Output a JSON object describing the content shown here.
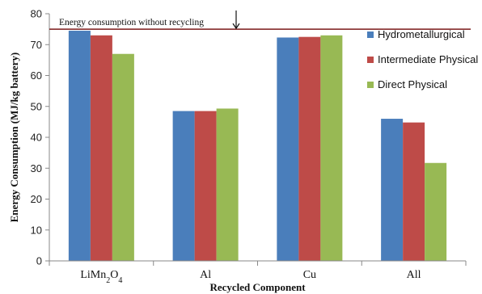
{
  "chart_data": {
    "type": "bar",
    "title": "",
    "xlabel": "Recycled Component",
    "ylabel": "Energy Consumption (MJ/kg battery)",
    "ylim": [
      0,
      80
    ],
    "yticks": [
      0,
      10,
      20,
      30,
      40,
      50,
      60,
      70,
      80
    ],
    "categories": [
      {
        "base": "LiMn",
        "sub1": "2",
        "mid": "O",
        "sub2": "4"
      },
      {
        "base": "Al"
      },
      {
        "base": "Cu"
      },
      {
        "base": "All"
      }
    ],
    "series": [
      {
        "name": "Hydrometallurgical",
        "color": "#4a7ebb",
        "values": [
          74.5,
          48.5,
          72.3,
          46
        ]
      },
      {
        "name": "Intermediate Physical",
        "color": "#be4b48",
        "values": [
          73,
          48.5,
          72.5,
          44.8
        ]
      },
      {
        "name": "Direct Physical",
        "color": "#98b954",
        "values": [
          67,
          49.3,
          73,
          31.7
        ]
      }
    ],
    "reference_line": {
      "value": 75,
      "label": "Energy consumption without recycling",
      "color": "#7b1a1a"
    },
    "grid": false,
    "legend_position": "right"
  }
}
